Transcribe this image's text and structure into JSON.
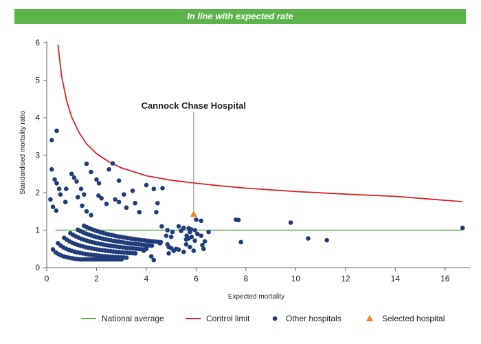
{
  "banner": {
    "text": "In line with expected rate",
    "color": "#5bb54a"
  },
  "chart_data": {
    "type": "scatter",
    "xlabel": "Expected mortality",
    "ylabel": "Standardised mortality ratio",
    "xlim": [
      0,
      17
    ],
    "ylim": [
      0,
      6
    ],
    "xticks": [
      0,
      2,
      4,
      6,
      8,
      10,
      12,
      14,
      16
    ],
    "yticks": [
      0,
      1,
      2,
      3,
      4,
      5,
      6
    ],
    "grid": false,
    "legend_position": "bottom-right",
    "annotation": {
      "text": "Cannock Chase Hospital",
      "x": 5.9,
      "y": 1.43
    },
    "series": [
      {
        "name": "National average",
        "type": "line",
        "color": "#5bb54a",
        "x": [
          0.35,
          16.7
        ],
        "y": [
          1,
          1
        ]
      },
      {
        "name": "Control limit",
        "type": "line",
        "color": "#e02020",
        "x": [
          0.45,
          0.6,
          0.8,
          1.0,
          1.3,
          1.6,
          2.0,
          2.5,
          3.0,
          4.0,
          5.0,
          6.0,
          7.0,
          8.0,
          10.0,
          12.0,
          14.0,
          16.7
        ],
        "y": [
          5.95,
          5.1,
          4.45,
          4.02,
          3.6,
          3.3,
          3.04,
          2.82,
          2.66,
          2.45,
          2.33,
          2.25,
          2.18,
          2.12,
          2.03,
          1.96,
          1.9,
          1.76
        ]
      },
      {
        "name": "Other hospitals",
        "type": "scatter",
        "color": "#1f3d7a",
        "points": [
          [
            0.2,
            3.4
          ],
          [
            0.4,
            3.65
          ],
          [
            0.2,
            2.62
          ],
          [
            0.32,
            2.35
          ],
          [
            0.4,
            2.25
          ],
          [
            0.5,
            2.1
          ],
          [
            0.78,
            2.1
          ],
          [
            0.55,
            1.95
          ],
          [
            0.75,
            1.75
          ],
          [
            0.15,
            1.82
          ],
          [
            0.25,
            1.62
          ],
          [
            0.38,
            1.52
          ],
          [
            1.0,
            2.5
          ],
          [
            1.1,
            2.4
          ],
          [
            1.2,
            2.3
          ],
          [
            1.38,
            2.1
          ],
          [
            1.5,
            1.95
          ],
          [
            1.6,
            2.77
          ],
          [
            1.78,
            2.55
          ],
          [
            2.0,
            2.35
          ],
          [
            2.1,
            2.25
          ],
          [
            1.25,
            1.88
          ],
          [
            1.42,
            1.65
          ],
          [
            1.6,
            1.5
          ],
          [
            1.78,
            1.4
          ],
          [
            2.08,
            1.92
          ],
          [
            2.5,
            2.62
          ],
          [
            2.65,
            2.78
          ],
          [
            2.9,
            2.32
          ],
          [
            2.2,
            1.85
          ],
          [
            2.4,
            1.7
          ],
          [
            2.75,
            1.82
          ],
          [
            2.9,
            1.75
          ],
          [
            3.1,
            1.95
          ],
          [
            3.45,
            2.05
          ],
          [
            3.2,
            1.6
          ],
          [
            3.55,
            1.72
          ],
          [
            3.72,
            1.48
          ],
          [
            4.0,
            2.2
          ],
          [
            4.3,
            2.1
          ],
          [
            4.65,
            2.12
          ],
          [
            4.45,
            1.72
          ],
          [
            4.4,
            1.48
          ],
          [
            4.62,
            1.1
          ],
          [
            3.9,
            0.45
          ],
          [
            4.0,
            0.5
          ],
          [
            4.2,
            0.3
          ],
          [
            4.3,
            0.2
          ],
          [
            4.55,
            0.65
          ],
          [
            4.8,
            0.85
          ],
          [
            4.85,
            0.62
          ],
          [
            4.9,
            0.55
          ],
          [
            5.0,
            0.52
          ],
          [
            5.1,
            0.45
          ],
          [
            5.2,
            0.5
          ],
          [
            5.3,
            0.48
          ],
          [
            5.5,
            0.42
          ],
          [
            5.6,
            0.62
          ],
          [
            5.75,
            0.55
          ],
          [
            5.9,
            0.45
          ],
          [
            5.95,
            0.72
          ],
          [
            5.3,
            1.1
          ],
          [
            5.5,
            1.06
          ],
          [
            5.7,
            1.05
          ],
          [
            5.8,
            1.02
          ],
          [
            5.95,
            1.0
          ],
          [
            6.0,
            1.28
          ],
          [
            6.2,
            1.25
          ],
          [
            5.62,
            0.85
          ],
          [
            5.75,
            0.95
          ],
          [
            6.05,
            0.9
          ],
          [
            6.35,
            0.7
          ],
          [
            6.5,
            0.95
          ],
          [
            6.2,
            0.85
          ],
          [
            6.25,
            0.6
          ],
          [
            5.82,
            0.82
          ],
          [
            5.6,
            0.75
          ],
          [
            5.7,
            0.78
          ],
          [
            5.4,
            0.98
          ],
          [
            5.0,
            0.82
          ],
          [
            5.05,
            0.95
          ],
          [
            4.85,
            1.0
          ],
          [
            4.9,
            0.38
          ],
          [
            6.3,
            0.5
          ],
          [
            7.6,
            1.28
          ],
          [
            7.7,
            1.27
          ],
          [
            7.8,
            0.68
          ],
          [
            9.8,
            1.2
          ],
          [
            10.5,
            0.78
          ],
          [
            11.25,
            0.73
          ],
          [
            16.7,
            1.06
          ]
        ]
      },
      {
        "name": "Selected hospital",
        "type": "scatter",
        "marker": "triangle",
        "color": "#f08020",
        "points": [
          [
            5.9,
            1.43
          ]
        ]
      }
    ]
  }
}
